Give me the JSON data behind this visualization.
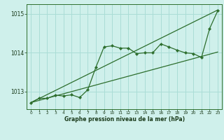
{
  "title": "Graphe pression niveau de la mer (hPa)",
  "bg_color": "#cff0eb",
  "grid_color": "#aaddd6",
  "line_color": "#2d6e2d",
  "text_color": "#1a3a1a",
  "xlim": [
    -0.5,
    23.5
  ],
  "ylim": [
    1012.55,
    1015.25
  ],
  "yticks": [
    1013,
    1014,
    1015
  ],
  "xticks": [
    0,
    1,
    2,
    3,
    4,
    5,
    6,
    7,
    8,
    9,
    10,
    11,
    12,
    13,
    14,
    15,
    16,
    17,
    18,
    19,
    20,
    21,
    22,
    23
  ],
  "hours": [
    0,
    1,
    2,
    3,
    4,
    5,
    6,
    7,
    8,
    9,
    10,
    11,
    12,
    13,
    14,
    15,
    16,
    17,
    18,
    19,
    20,
    21,
    22,
    23
  ],
  "pressure": [
    1012.72,
    1012.83,
    1012.83,
    1012.91,
    1012.89,
    1012.92,
    1012.85,
    1013.05,
    1013.63,
    1014.15,
    1014.18,
    1014.12,
    1014.12,
    1013.98,
    1014.0,
    1014.0,
    1014.23,
    1014.15,
    1014.07,
    1014.0,
    1013.98,
    1013.88,
    1014.62,
    1015.08
  ],
  "trend1": [
    1012.72,
    1015.1
  ],
  "trend2": [
    1012.72,
    1014.02
  ],
  "trend1_x": [
    0,
    23
  ],
  "trend2_x": [
    0,
    23
  ]
}
